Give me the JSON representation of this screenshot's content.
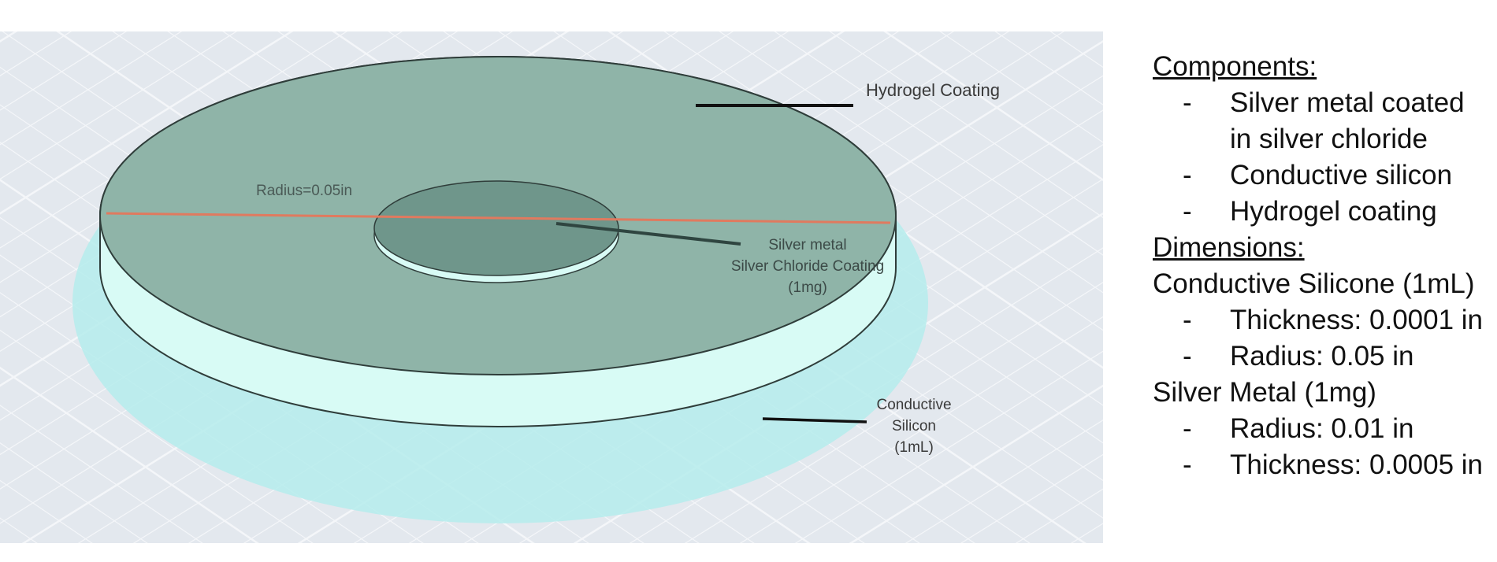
{
  "diagram": {
    "labels": {
      "hydrogel": "Hydrogel Coating",
      "radius": "Radius=0.05in",
      "silver_line1": "Silver metal",
      "silver_line2": "Silver Chloride Coating",
      "silver_line3": "(1mg)",
      "silicon_line1": "Conductive",
      "silicon_line2": "Silicon",
      "silicon_line3": "(1mL)"
    },
    "colors": {
      "background": "#e3e8ee",
      "grid": "#f4f6f9",
      "halo": "#b5ecec",
      "disc_top": "#8fb4a8",
      "disc_side": "#d8fbf5",
      "center_disc": "#6f968b",
      "radius_line": "#e07a5f",
      "outline": "#2f3d3a"
    }
  },
  "panel": {
    "components_heading": "Components:",
    "components": [
      "Silver metal coated in silver chloride",
      "Conductive silicon",
      "Hydrogel coating"
    ],
    "dimensions_heading": "Dimensions:",
    "silicone_heading": "Conductive Silicone (1mL)",
    "silicone_items": [
      "Thickness: 0.0001 in",
      "Radius: 0.05 in"
    ],
    "metal_heading": "Silver Metal (1mg)",
    "metal_items": [
      "Radius: 0.01 in",
      "Thickness: 0.0005 in"
    ],
    "dash": "-"
  }
}
